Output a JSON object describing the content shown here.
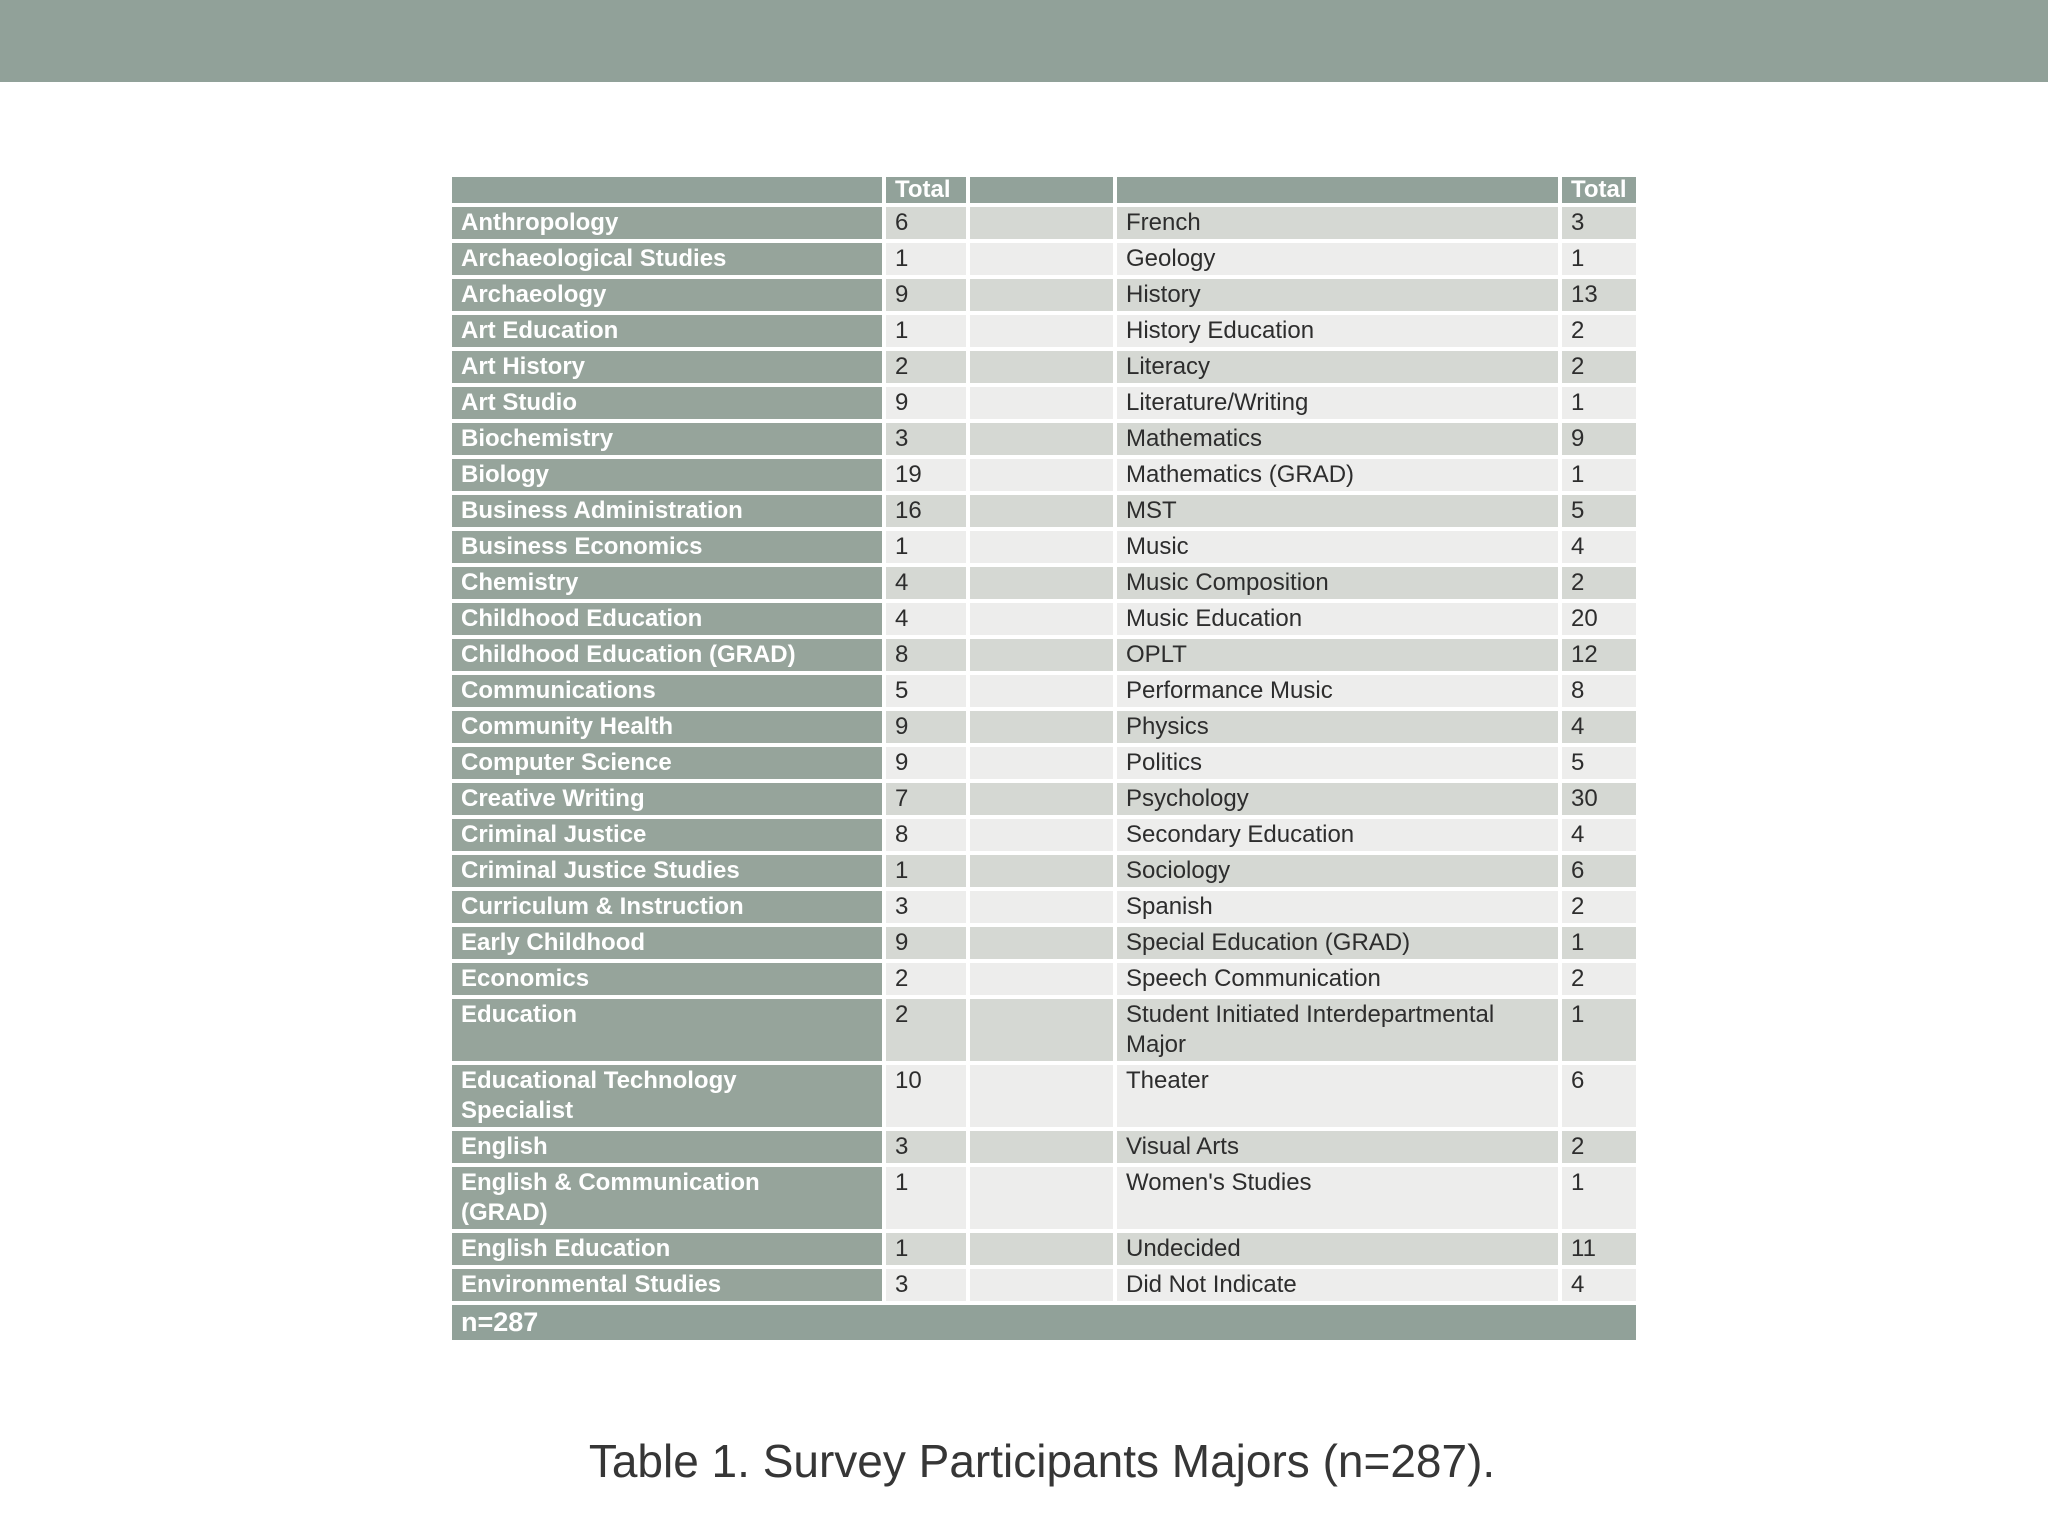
{
  "caption": "Table 1. Survey Participants Majors (n=287).",
  "colors": {
    "banner_green": "#91a199",
    "cell_green": "#96a49b",
    "stripe_dark": "#d5d8d3",
    "stripe_light": "#ededec"
  },
  "table": {
    "header": {
      "total_label": "Total"
    },
    "footer": {
      "label": "n=287"
    },
    "rows": [
      {
        "left": {
          "major": "Anthropology",
          "total": "6"
        },
        "right": {
          "major": "French",
          "total": "3"
        }
      },
      {
        "left": {
          "major": "Archaeological Studies",
          "total": "1"
        },
        "right": {
          "major": "Geology",
          "total": "1"
        }
      },
      {
        "left": {
          "major": "Archaeology",
          "total": "9"
        },
        "right": {
          "major": "History",
          "total": "13"
        }
      },
      {
        "left": {
          "major": "Art Education",
          "total": "1"
        },
        "right": {
          "major": "History Education",
          "total": "2"
        }
      },
      {
        "left": {
          "major": "Art History",
          "total": "2"
        },
        "right": {
          "major": "Literacy",
          "total": "2"
        }
      },
      {
        "left": {
          "major": "Art Studio",
          "total": "9"
        },
        "right": {
          "major": "Literature/Writing",
          "total": "1"
        }
      },
      {
        "left": {
          "major": "Biochemistry",
          "total": "3"
        },
        "right": {
          "major": "Mathematics",
          "total": "9"
        }
      },
      {
        "left": {
          "major": "Biology",
          "total": "19"
        },
        "right": {
          "major": "Mathematics (GRAD)",
          "total": "1"
        }
      },
      {
        "left": {
          "major": "Business Administration",
          "total": "16"
        },
        "right": {
          "major": "MST",
          "total": "5"
        }
      },
      {
        "left": {
          "major": "Business Economics",
          "total": "1"
        },
        "right": {
          "major": "Music",
          "total": "4"
        }
      },
      {
        "left": {
          "major": "Chemistry",
          "total": "4"
        },
        "right": {
          "major": "Music Composition",
          "total": "2"
        }
      },
      {
        "left": {
          "major": "Childhood Education",
          "total": "4"
        },
        "right": {
          "major": "Music Education",
          "total": "20"
        }
      },
      {
        "left": {
          "major": "Childhood Education (GRAD)",
          "total": "8"
        },
        "right": {
          "major": "OPLT",
          "total": "12"
        }
      },
      {
        "left": {
          "major": "Communications",
          "total": "5"
        },
        "right": {
          "major": "Performance Music",
          "total": "8"
        }
      },
      {
        "left": {
          "major": "Community Health",
          "total": "9"
        },
        "right": {
          "major": "Physics",
          "total": "4"
        }
      },
      {
        "left": {
          "major": "Computer Science",
          "total": "9"
        },
        "right": {
          "major": "Politics",
          "total": "5"
        }
      },
      {
        "left": {
          "major": "Creative Writing",
          "total": "7"
        },
        "right": {
          "major": "Psychology",
          "total": "30"
        }
      },
      {
        "left": {
          "major": "Criminal Justice",
          "total": "8"
        },
        "right": {
          "major": "Secondary Education",
          "total": "4"
        }
      },
      {
        "left": {
          "major": "Criminal Justice Studies",
          "total": "1"
        },
        "right": {
          "major": "Sociology",
          "total": "6"
        }
      },
      {
        "left": {
          "major": "Curriculum & Instruction",
          "total": "3"
        },
        "right": {
          "major": "Spanish",
          "total": "2"
        }
      },
      {
        "left": {
          "major": "Early Childhood",
          "total": "9"
        },
        "right": {
          "major": "Special Education (GRAD)",
          "total": "1"
        }
      },
      {
        "left": {
          "major": "Economics",
          "total": "2"
        },
        "right": {
          "major": "Speech Communication",
          "total": "2"
        }
      },
      {
        "left": {
          "major": "Education",
          "total": "2"
        },
        "right": {
          "major": "Student Initiated Interdepartmental\nMajor",
          "total": "1"
        }
      },
      {
        "left": {
          "major": "Educational Technology\nSpecialist",
          "total": "10"
        },
        "right": {
          "major": "Theater",
          "total": "6"
        }
      },
      {
        "left": {
          "major": "English",
          "total": "3"
        },
        "right": {
          "major": "Visual Arts",
          "total": "2"
        }
      },
      {
        "left": {
          "major": "English & Communication\n(GRAD)",
          "total": "1"
        },
        "right": {
          "major": "Women's Studies",
          "total": "1"
        }
      },
      {
        "left": {
          "major": "English Education",
          "total": "1"
        },
        "right": {
          "major": "Undecided",
          "total": "11"
        }
      },
      {
        "left": {
          "major": "Environmental Studies",
          "total": "3"
        },
        "right": {
          "major": "Did Not Indicate",
          "total": "4"
        }
      }
    ]
  }
}
